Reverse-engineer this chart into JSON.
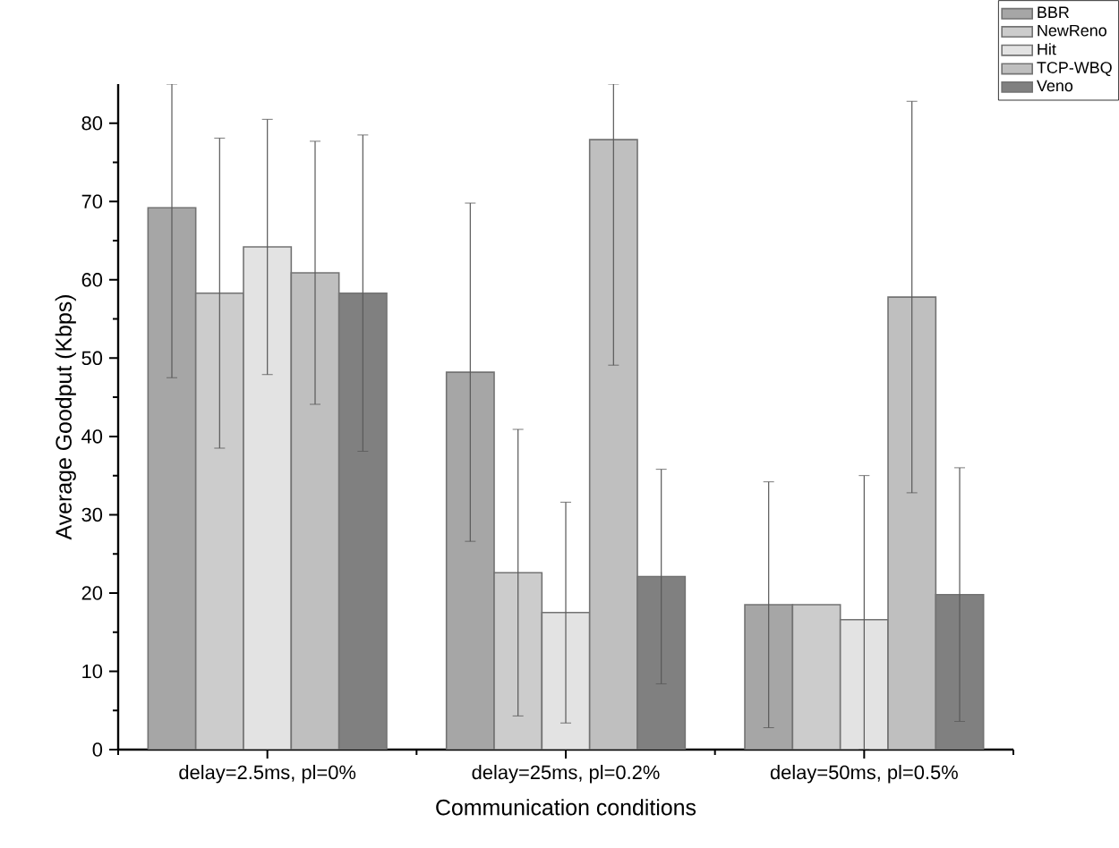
{
  "chart_data": {
    "type": "bar",
    "xlabel": "Communication conditions",
    "ylabel": "Average Goodput (Kbps)",
    "categories": [
      "delay=2.5ms, pl=0%",
      "delay=25ms, pl=0.2%",
      "delay=50ms, pl=0.5%"
    ],
    "ylim": [
      0,
      85
    ],
    "yticks": [
      0,
      10,
      20,
      30,
      40,
      50,
      60,
      70,
      80
    ],
    "legend": "top right",
    "series": [
      {
        "name": "BBR",
        "color": "#a6a6a6",
        "values": [
          69.2,
          48.2,
          18.5
        ],
        "errors": [
          [
            47.5,
            85
          ],
          21.6,
          15.7
        ]
      },
      {
        "name": "NewReno",
        "color": "#cccccc",
        "values": [
          58.3,
          22.6,
          18.5
        ],
        "errors": [
          19.8,
          18.3,
          null
        ]
      },
      {
        "name": "Hit",
        "color": "#e3e3e3",
        "values": [
          64.2,
          17.5,
          16.6
        ],
        "errors": [
          16.3,
          14.1,
          [
            0,
            35.0
          ]
        ]
      },
      {
        "name": "TCP-WBQ",
        "color": "#bfbfbf",
        "values": [
          60.9,
          77.9,
          57.8
        ],
        "errors": [
          16.8,
          [
            49.1,
            85
          ],
          25.0
        ]
      },
      {
        "name": "Veno",
        "color": "#808080",
        "values": [
          58.3,
          22.1,
          19.8
        ],
        "errors": [
          20.2,
          13.7,
          16.2
        ]
      }
    ]
  }
}
